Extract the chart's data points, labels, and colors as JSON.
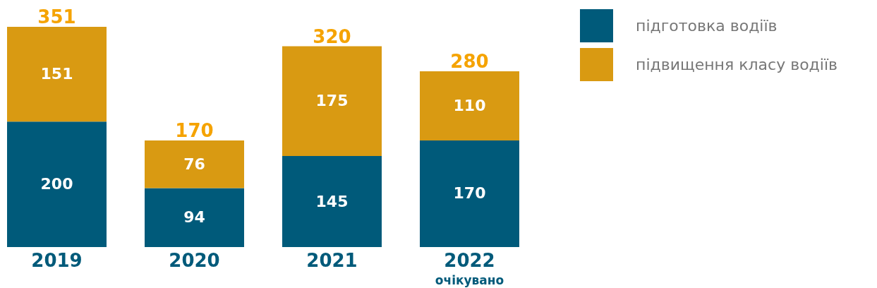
{
  "chart_data": {
    "type": "bar",
    "stacked": true,
    "categories": [
      "2019",
      "2020",
      "2021",
      "2022"
    ],
    "series": [
      {
        "name": "підготовка водіїв",
        "color": "#005a7a",
        "values": [
          200,
          94,
          145,
          170
        ]
      },
      {
        "name": "підвищення класу водіїв",
        "color": "#d99a12",
        "values": [
          151,
          76,
          175,
          110
        ]
      }
    ],
    "data_labels": true,
    "totals": [
      "351",
      "170",
      "320",
      "280"
    ],
    "legend": "top right",
    "annotations": [
      "очікувано"
    ]
  }
}
